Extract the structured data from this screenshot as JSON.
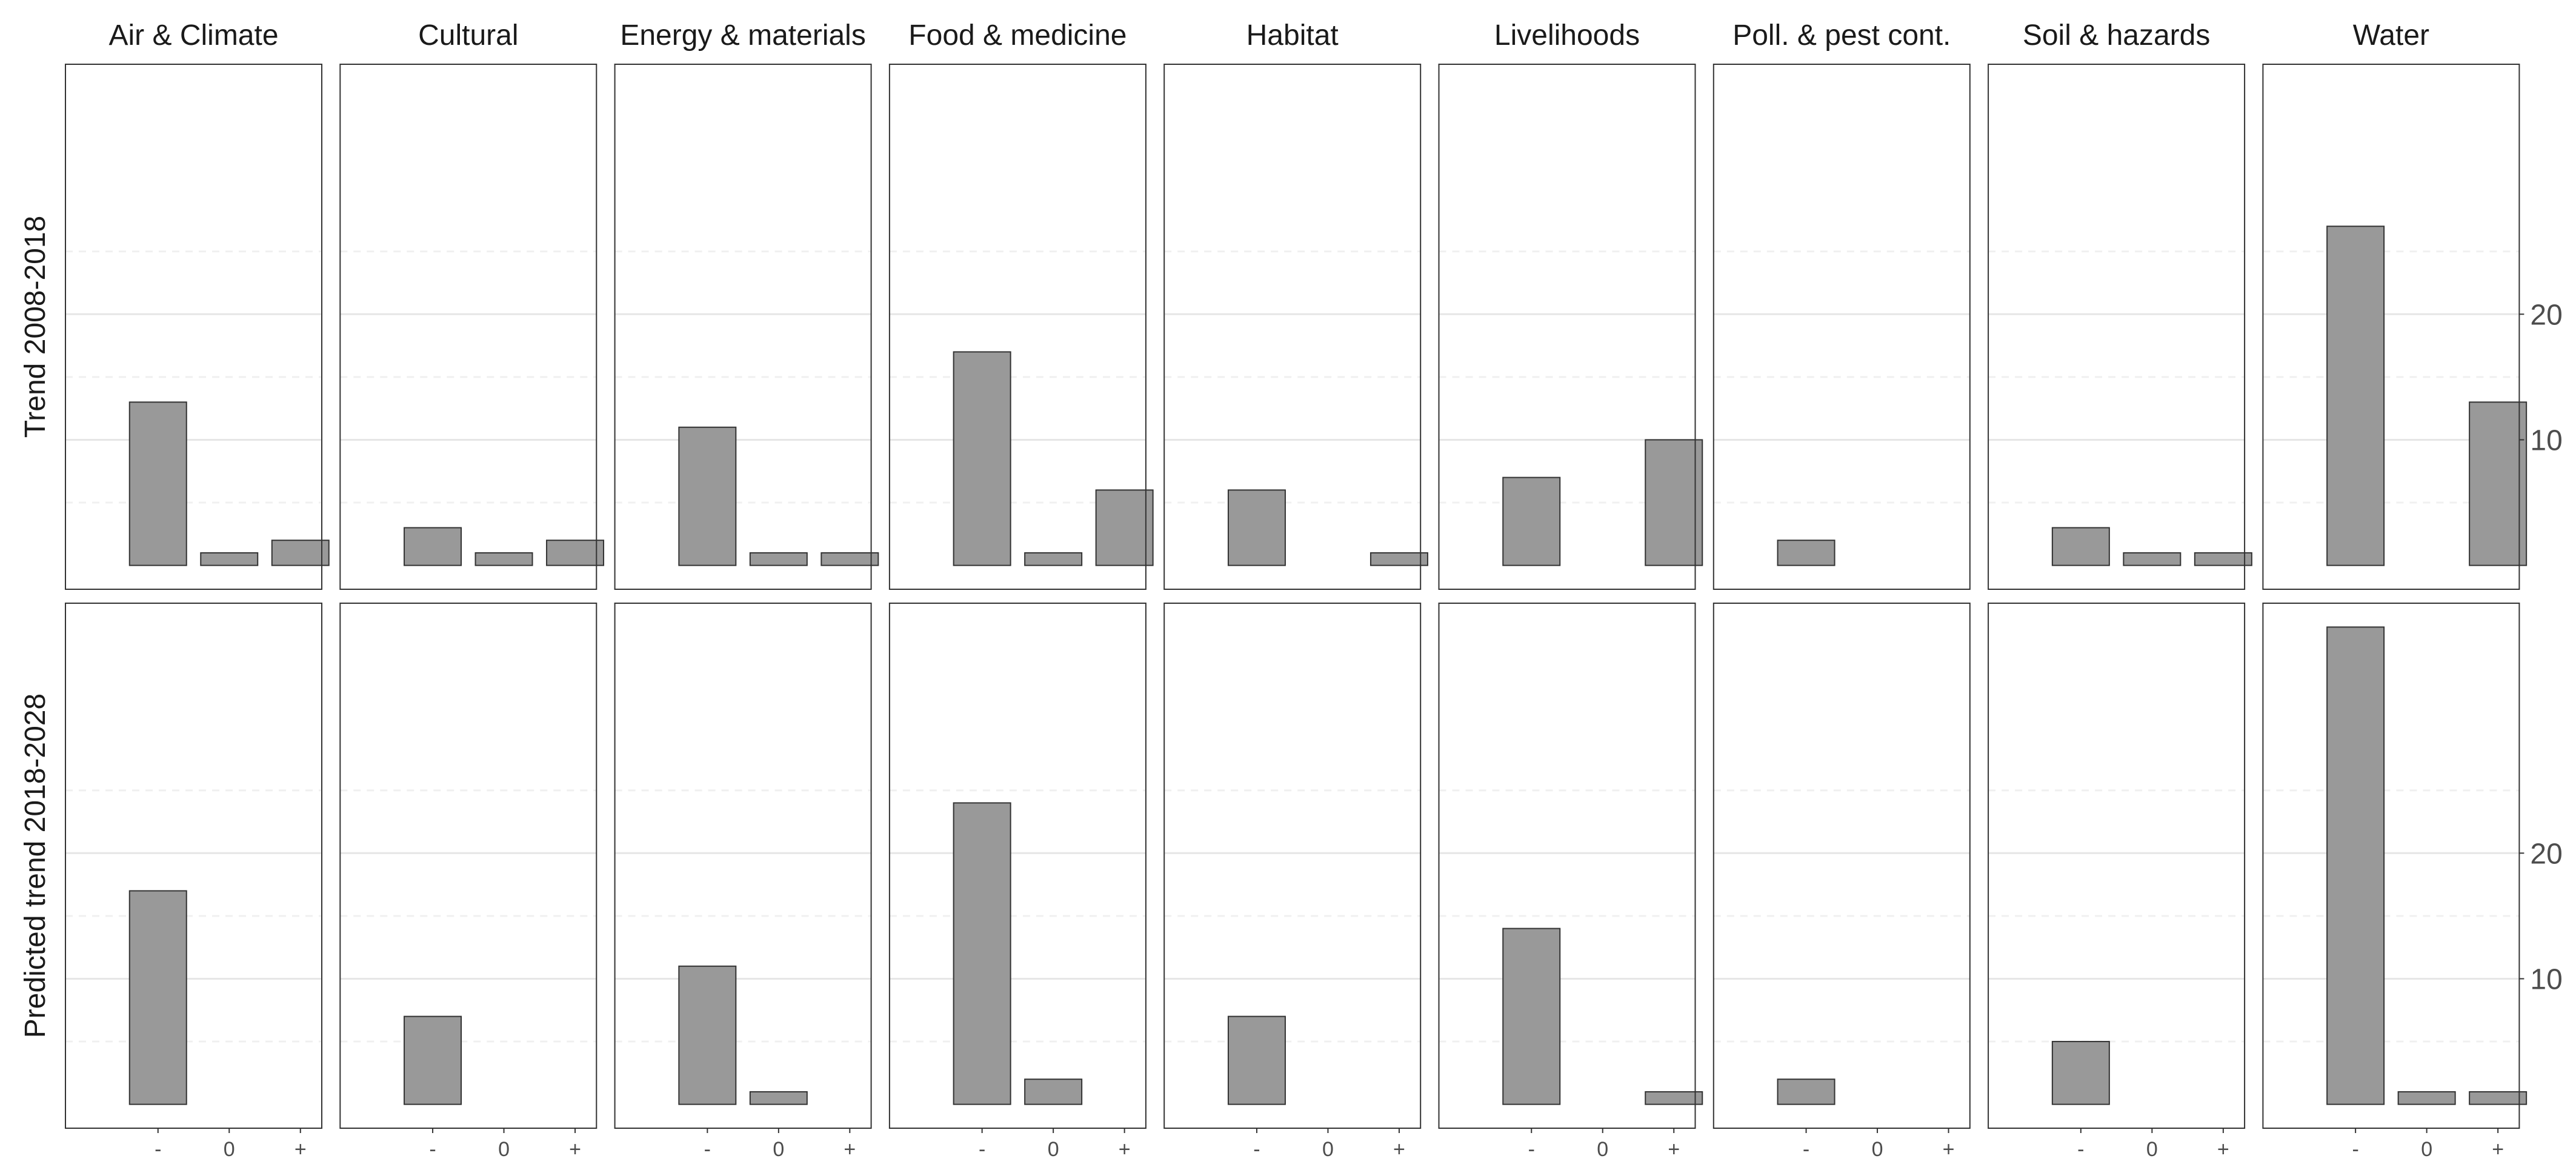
{
  "chart_data": {
    "type": "bar",
    "facets": [
      "Air & Climate",
      "Cultural",
      "Energy & materials",
      "Food & medicine",
      "Habitat",
      "Livelihoods",
      "Poll. & pest cont.",
      "Soil & hazards",
      "Water"
    ],
    "rows": [
      "Trend 2008-2018",
      "Predicted trend 2018-2028"
    ],
    "categories": [
      "-",
      "0",
      "+"
    ],
    "values": [
      [
        [
          13,
          1,
          2
        ],
        [
          3,
          1,
          2
        ],
        [
          11,
          1,
          1
        ],
        [
          17,
          1,
          6
        ],
        [
          6,
          0,
          1
        ],
        [
          7,
          0,
          10
        ],
        [
          2,
          0,
          0
        ],
        [
          3,
          1,
          1
        ],
        [
          27,
          0,
          13
        ]
      ],
      [
        [
          17,
          0,
          0
        ],
        [
          7,
          0,
          0
        ],
        [
          11,
          1,
          0
        ],
        [
          24,
          2,
          0
        ],
        [
          7,
          0,
          0
        ],
        [
          14,
          0,
          1
        ],
        [
          2,
          0,
          0
        ],
        [
          5,
          0,
          0
        ],
        [
          38,
          1,
          1
        ]
      ]
    ],
    "ylim": [
      -1.9,
      39.9
    ],
    "yticks": [
      10,
      20
    ],
    "y_minor": [
      5,
      15,
      25
    ],
    "bar_color": "#999999",
    "bar_outline": "#333333",
    "grid": true,
    "y_axis_position": "right"
  }
}
